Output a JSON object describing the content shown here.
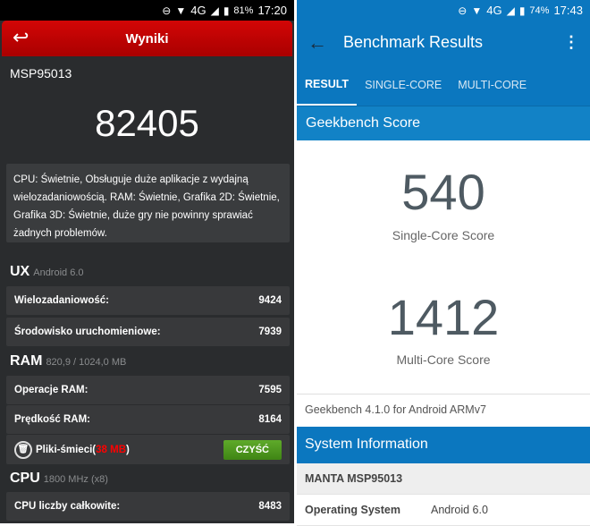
{
  "left": {
    "status": {
      "battery": "81%",
      "time": "17:20",
      "network": "4G"
    },
    "header_title": "Wyniki",
    "device": "MSP95013",
    "total_score": "82405",
    "description": "CPU: Świetnie, Obsługuje duże aplikacje z wydajną wielozadaniowością. RAM: Świetnie, Grafika 2D: Świetnie, Grafika 3D: Świetnie, duże gry nie powinny sprawiać żadnych problemów.",
    "ux": {
      "label": "UX",
      "sub": "Android 6.0",
      "items": [
        {
          "label": "Wielozadaniowość:",
          "value": "9424"
        },
        {
          "label": "Środowisko uruchomieniowe:",
          "value": "7939"
        }
      ]
    },
    "ram": {
      "label": "RAM",
      "sub": "820,9 / 1024,0 MB",
      "items": [
        {
          "label": "Operacje RAM:",
          "value": "7595"
        },
        {
          "label": "Prędkość RAM:",
          "value": "8164"
        }
      ],
      "junk_label": "Pliki-śmieci(",
      "junk_size": "38 MB",
      "junk_close": ")",
      "clean_button": "CZYŚĆ"
    },
    "cpu": {
      "label": "CPU",
      "sub": "1800 MHz (x8)",
      "items": [
        {
          "label": "CPU liczby całkowite:",
          "value": "8483"
        }
      ]
    }
  },
  "right": {
    "status": {
      "battery": "74%",
      "time": "17:43",
      "network": "4G"
    },
    "title": "Benchmark Results",
    "tabs": [
      "RESULT",
      "SINGLE-CORE",
      "MULTI-CORE"
    ],
    "score_header": "Geekbench Score",
    "single_score": "540",
    "single_label": "Single-Core Score",
    "multi_score": "1412",
    "multi_label": "Multi-Core Score",
    "version": "Geekbench 4.1.0 for Android ARMv7",
    "sysinfo_header": "System Information",
    "device": "MANTA MSP95013",
    "os_label": "Operating System",
    "os_value": "Android 6.0"
  },
  "colors": {
    "red": "#c80202",
    "blue": "#0b77bf",
    "green": "#4f9a20"
  }
}
